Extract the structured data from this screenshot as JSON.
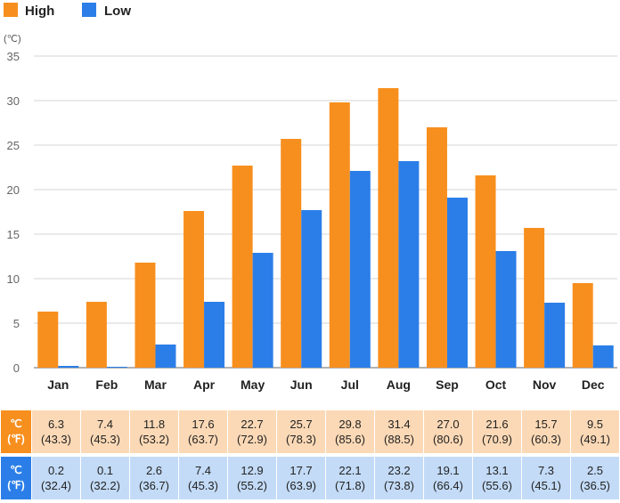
{
  "colors": {
    "high": "#f78f1e",
    "low": "#2b7ee8",
    "grid": "#d6d6d6",
    "axis": "#999999"
  },
  "chart_data": {
    "type": "bar",
    "unit_label": "(℃)",
    "categories": [
      "Jan",
      "Feb",
      "Mar",
      "Apr",
      "May",
      "Jun",
      "Jul",
      "Aug",
      "Sep",
      "Oct",
      "Nov",
      "Dec"
    ],
    "series": [
      {
        "name": "High",
        "values": [
          6.3,
          7.4,
          11.8,
          17.6,
          22.7,
          25.7,
          29.8,
          31.4,
          27.0,
          21.6,
          15.7,
          9.5
        ]
      },
      {
        "name": "Low",
        "values": [
          0.2,
          0.1,
          2.6,
          7.4,
          12.9,
          17.7,
          22.1,
          23.2,
          19.1,
          13.1,
          7.3,
          2.5
        ]
      }
    ],
    "ylim": [
      0,
      35
    ],
    "yticks": [
      0,
      5,
      10,
      15,
      20,
      25,
      30,
      35
    ],
    "grid": true,
    "legend_position": "top-left"
  },
  "table": {
    "high": {
      "unit_c": "℃",
      "unit_f": "(℉)",
      "celsius": [
        "6.3",
        "7.4",
        "11.8",
        "17.6",
        "22.7",
        "25.7",
        "29.8",
        "31.4",
        "27.0",
        "21.6",
        "15.7",
        "9.5"
      ],
      "fahrenheit": [
        "(43.3)",
        "(45.3)",
        "(53.2)",
        "(63.7)",
        "(72.9)",
        "(78.3)",
        "(85.6)",
        "(88.5)",
        "(80.6)",
        "(70.9)",
        "(60.3)",
        "(49.1)"
      ]
    },
    "low": {
      "unit_c": "℃",
      "unit_f": "(℉)",
      "celsius": [
        "0.2",
        "0.1",
        "2.6",
        "7.4",
        "12.9",
        "17.7",
        "22.1",
        "23.2",
        "19.1",
        "13.1",
        "7.3",
        "2.5"
      ],
      "fahrenheit": [
        "(32.4)",
        "(32.2)",
        "(36.7)",
        "(45.3)",
        "(55.2)",
        "(63.9)",
        "(71.8)",
        "(73.8)",
        "(66.4)",
        "(55.6)",
        "(45.1)",
        "(36.5)"
      ]
    }
  }
}
